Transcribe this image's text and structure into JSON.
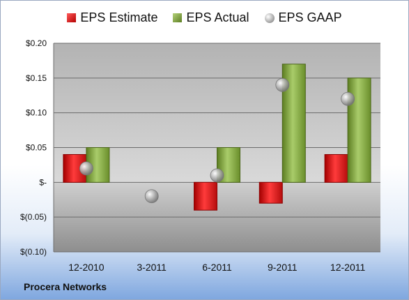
{
  "footer": {
    "company": "Procera Networks"
  },
  "chart_data": {
    "type": "bar",
    "categories": [
      "12-2010",
      "3-2011",
      "6-2011",
      "9-2011",
      "12-2011"
    ],
    "series": [
      {
        "name": "EPS Estimate",
        "kind": "bar",
        "color": "#d81c1c",
        "values": [
          0.04,
          null,
          -0.04,
          -0.03,
          0.04
        ]
      },
      {
        "name": "EPS Actual",
        "kind": "bar",
        "color": "#8aae45",
        "values": [
          0.05,
          null,
          0.05,
          0.17,
          0.15
        ]
      },
      {
        "name": "EPS GAAP",
        "kind": "scatter",
        "color": "#a8a8a8",
        "values": [
          0.02,
          -0.02,
          0.01,
          0.14,
          0.12
        ]
      }
    ],
    "ylim": [
      -0.1,
      0.2
    ],
    "yticks": [
      {
        "value": 0.2,
        "label": "$0.20"
      },
      {
        "value": 0.15,
        "label": "$0.15"
      },
      {
        "value": 0.1,
        "label": "$0.10"
      },
      {
        "value": 0.05,
        "label": "$0.05"
      },
      {
        "value": 0.0,
        "label": "$-"
      },
      {
        "value": -0.05,
        "label": "$(0.05)"
      },
      {
        "value": -0.1,
        "label": "$(0.10)"
      }
    ],
    "grid": true,
    "legend": "top-center"
  }
}
